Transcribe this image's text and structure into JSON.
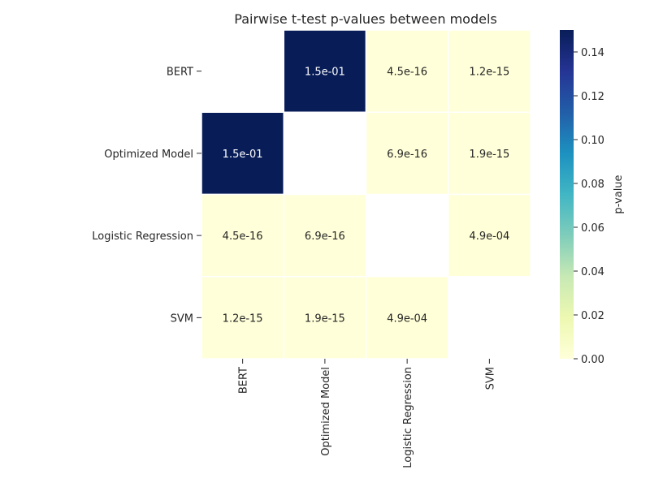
{
  "chart_data": {
    "type": "heatmap",
    "title": "Pairwise t-test p-values between models",
    "xlabel": "",
    "ylabel": "",
    "categories": [
      "BERT",
      "Optimized Model",
      "Logistic Regression",
      "SVM"
    ],
    "matrix": [
      [
        null,
        0.15,
        4.5e-16,
        1.2e-15
      ],
      [
        0.15,
        null,
        6.9e-16,
        1.9e-15
      ],
      [
        4.5e-16,
        6.9e-16,
        null,
        0.00049
      ],
      [
        1.2e-15,
        1.9e-15,
        0.00049,
        null
      ]
    ],
    "labels": [
      [
        "",
        "1.5e-01",
        "4.5e-16",
        "1.2e-15"
      ],
      [
        "1.5e-01",
        "",
        "6.9e-16",
        "1.9e-15"
      ],
      [
        "4.5e-16",
        "6.9e-16",
        "",
        "4.9e-04"
      ],
      [
        "1.2e-15",
        "1.9e-15",
        "4.9e-04",
        ""
      ]
    ],
    "colormap": "YlGnBu",
    "vmin": 0,
    "vmax": 0.15,
    "colorbar": {
      "label": "p-value",
      "ticks": [
        "0.00",
        "0.02",
        "0.04",
        "0.06",
        "0.08",
        "0.10",
        "0.12",
        "0.14"
      ],
      "tick_values": [
        0,
        0.02,
        0.04,
        0.06,
        0.08,
        0.1,
        0.12,
        0.14
      ]
    },
    "grid": false,
    "legend": "colorbar-right"
  },
  "colors": {
    "background": "#ffffff",
    "text": "#262626",
    "cell_border": "#ffffff",
    "colormap_stops": [
      "#ffffd9",
      "#edf8b1",
      "#c7e9b4",
      "#7fcdbb",
      "#41b6c4",
      "#1d91c0",
      "#225ea8",
      "#253494",
      "#081d58"
    ]
  }
}
